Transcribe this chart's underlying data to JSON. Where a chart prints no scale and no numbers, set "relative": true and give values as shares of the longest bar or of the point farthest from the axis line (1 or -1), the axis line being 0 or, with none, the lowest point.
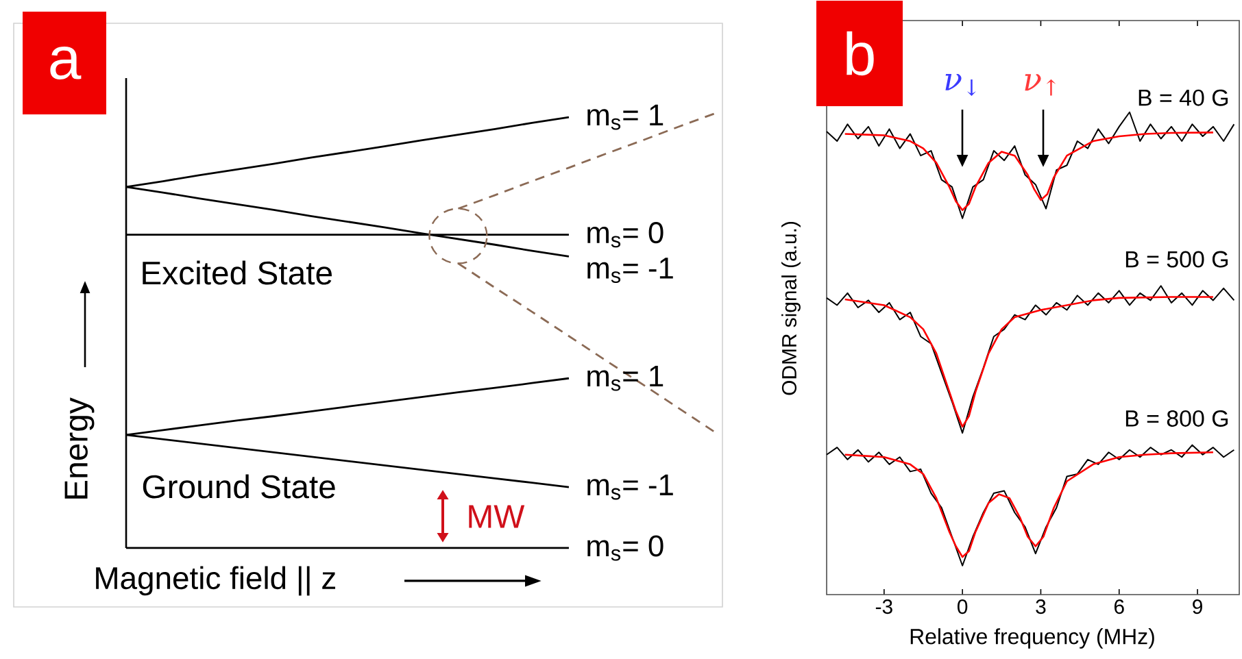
{
  "chart_data": [
    {
      "type": "line",
      "title": "a",
      "xlabel": "Magnetic field || z",
      "ylabel": "Energy",
      "relative": true,
      "categories": [
        null,
        null,
        null,
        null,
        null,
        null,
        null,
        null,
        null,
        null,
        null,
        null,
        null,
        null,
        null,
        null,
        null
      ],
      "line_style": "solid",
      "annotations": [
        "Excited State",
        "Ground State",
        "MW"
      ],
      "series": [
        {
          "name": "m$_{s}$= 1",
          "color": "#000000",
          "values": [
            0.83,
            0.843,
            0.857,
            0.87,
            0.883,
            0.897,
            0.91,
            0.923,
            0.937,
            0.95,
            0.963,
            0.977,
            0.99,
            null,
            null,
            null,
            null
          ]
        },
        {
          "name": "m$_{s}$= 0",
          "color": "#000000",
          "values": [
            0.72,
            0.72,
            0.72,
            0.72,
            0.72,
            0.72,
            0.72,
            0.72,
            0.72,
            0.72,
            0.72,
            0.72,
            0.72,
            null,
            null,
            null,
            null
          ]
        },
        {
          "name": "m$_{s}$= -1",
          "color": "#000000",
          "values": [
            0.83,
            0.817,
            0.803,
            0.79,
            0.777,
            0.763,
            0.75,
            0.737,
            0.723,
            0.71,
            0.697,
            0.683,
            0.67,
            null,
            null,
            null,
            null
          ]
        },
        {
          "color": "#8b6a55",
          "line_style": "dashed",
          "values": [
            null,
            null,
            null,
            null,
            null,
            null,
            null,
            null,
            null,
            0.78,
            0.811,
            0.843,
            0.874,
            0.906,
            0.937,
            0.969,
            1.0
          ]
        },
        {
          "color": "#8b6a55",
          "line_style": "dashed",
          "values": [
            null,
            null,
            null,
            null,
            null,
            null,
            null,
            null,
            null,
            0.654,
            0.598,
            0.543,
            0.487,
            0.431,
            0.376,
            0.32,
            0.264
          ]
        },
        {
          "name": "m$_{s}$= 1",
          "color": "#000000",
          "values": [
            0.26,
            0.271,
            0.282,
            0.293,
            0.303,
            0.314,
            0.325,
            0.336,
            0.347,
            0.358,
            0.368,
            0.379,
            0.39,
            null,
            null,
            null,
            null
          ]
        },
        {
          "name": "m$_{s}$= -1",
          "color": "#000000",
          "values": [
            0.26,
            0.25,
            0.24,
            0.23,
            0.22,
            0.21,
            0.2,
            0.19,
            0.18,
            0.17,
            0.16,
            0.15,
            0.14,
            null,
            null,
            null,
            null
          ]
        },
        {
          "name": "m$_{s}$= 0",
          "color": "#000000",
          "values": [
            0,
            0,
            0,
            0,
            0,
            0,
            0,
            0,
            0,
            0,
            0,
            0,
            0,
            null,
            null,
            null,
            null
          ]
        }
      ]
    },
    {
      "type": "line",
      "title": "b",
      "xlabel": "Relative frequency (MHz)",
      "ylabel": "ODMR signal (a.u.)",
      "relative": true,
      "xlim": [
        -5.2,
        10.6
      ],
      "xticks": [
        -3,
        0,
        3,
        6,
        9
      ],
      "line_style": "solid",
      "annotations": [
        "ν$_{↓}$",
        "ν$_{↑}$"
      ],
      "series": [
        {
          "name": "B = 40 G",
          "color": "#000000",
          "x": [
            -5.2,
            -4.8,
            -4.4,
            -4.0,
            -3.6,
            -3.2,
            -2.8,
            -2.4,
            -2.0,
            -1.6,
            -1.2,
            -0.8,
            -0.4,
            0.0,
            0.4,
            0.8,
            1.2,
            1.6,
            2.0,
            2.4,
            2.8,
            3.2,
            3.6,
            4.0,
            4.4,
            4.8,
            5.2,
            5.6,
            6.0,
            6.4,
            6.8,
            7.2,
            7.6,
            8.0,
            8.4,
            8.8,
            9.2,
            9.6,
            10.0,
            10.4
          ],
          "values": [
            0.96,
            0.94,
            0.975,
            0.945,
            0.97,
            0.93,
            0.965,
            0.925,
            0.955,
            0.91,
            0.92,
            0.86,
            0.845,
            0.78,
            0.845,
            0.86,
            0.92,
            0.9,
            0.93,
            0.87,
            0.85,
            0.8,
            0.88,
            0.89,
            0.94,
            0.925,
            0.965,
            0.935,
            0.97,
            1.0,
            0.94,
            0.975,
            0.945,
            0.97,
            0.94,
            0.975,
            0.95,
            0.97,
            0.94,
            0.975
          ]
        },
        {
          "color": "#ff0000",
          "x": [
            -4.5,
            -3,
            -2,
            -1.5,
            -1,
            -0.5,
            -0.25,
            0,
            0.25,
            0.5,
            1,
            1.5,
            2,
            2.5,
            2.75,
            3,
            3.25,
            3.5,
            4,
            5,
            6,
            7,
            8,
            9.6
          ],
          "values": [
            0.955,
            0.952,
            0.94,
            0.925,
            0.895,
            0.845,
            0.815,
            0.797,
            0.81,
            0.845,
            0.895,
            0.918,
            0.91,
            0.87,
            0.84,
            0.818,
            0.83,
            0.865,
            0.91,
            0.94,
            0.95,
            0.955,
            0.957,
            0.958
          ]
        },
        {
          "name": "B = 500 G",
          "color": "#000000",
          "x": [
            -5.2,
            -4.8,
            -4.4,
            -4.0,
            -3.6,
            -3.2,
            -2.8,
            -2.4,
            -2.0,
            -1.6,
            -1.2,
            -0.8,
            -0.4,
            0.0,
            0.4,
            0.8,
            1.2,
            1.6,
            2.0,
            2.4,
            2.8,
            3.2,
            3.6,
            4.0,
            4.4,
            4.8,
            5.2,
            5.6,
            6.0,
            6.4,
            6.8,
            7.2,
            7.6,
            8.0,
            8.4,
            8.8,
            9.2,
            9.6,
            10.0,
            10.4
          ],
          "values": [
            0.615,
            0.6,
            0.625,
            0.595,
            0.61,
            0.585,
            0.605,
            0.57,
            0.585,
            0.535,
            0.52,
            0.46,
            0.4,
            0.335,
            0.41,
            0.47,
            0.535,
            0.55,
            0.58,
            0.57,
            0.6,
            0.58,
            0.605,
            0.59,
            0.62,
            0.6,
            0.625,
            0.605,
            0.63,
            0.6,
            0.625,
            0.61,
            0.64,
            0.605,
            0.625,
            0.6,
            0.63,
            0.61,
            0.635,
            0.61
          ]
        },
        {
          "color": "#ff0000",
          "x": [
            -4.5,
            -3,
            -2,
            -1.5,
            -1,
            -0.5,
            -0.25,
            0,
            0.25,
            0.5,
            1,
            1.5,
            2,
            3,
            4,
            5,
            6,
            8,
            9.6
          ],
          "values": [
            0.612,
            0.6,
            0.575,
            0.55,
            0.5,
            0.42,
            0.38,
            0.348,
            0.37,
            0.42,
            0.5,
            0.55,
            0.575,
            0.59,
            0.6,
            0.61,
            0.615,
            0.617,
            0.617
          ]
        },
        {
          "name": "B = 800 G",
          "color": "#000000",
          "x": [
            -5.2,
            -4.8,
            -4.4,
            -4.0,
            -3.6,
            -3.2,
            -2.8,
            -2.4,
            -2.0,
            -1.6,
            -1.2,
            -0.8,
            -0.4,
            0.0,
            0.4,
            0.8,
            1.2,
            1.6,
            2.0,
            2.4,
            2.8,
            3.2,
            3.6,
            4.0,
            4.4,
            4.8,
            5.2,
            5.6,
            6.0,
            6.4,
            6.8,
            7.2,
            7.6,
            8.0,
            8.4,
            8.8,
            9.2,
            9.6,
            10.0,
            10.4
          ],
          "values": [
            0.29,
            0.305,
            0.28,
            0.3,
            0.275,
            0.295,
            0.27,
            0.285,
            0.255,
            0.26,
            0.21,
            0.18,
            0.12,
            0.06,
            0.12,
            0.17,
            0.21,
            0.215,
            0.17,
            0.14,
            0.085,
            0.14,
            0.18,
            0.245,
            0.25,
            0.28,
            0.27,
            0.295,
            0.28,
            0.3,
            0.285,
            0.305,
            0.29,
            0.3,
            0.285,
            0.31,
            0.29,
            0.305,
            0.285,
            0.3
          ]
        },
        {
          "color": "#ff0000",
          "x": [
            -4.5,
            -3,
            -2,
            -1.5,
            -1,
            -0.5,
            -0.25,
            0,
            0.25,
            0.5,
            1,
            1.4,
            1.8,
            2.2,
            2.5,
            2.8,
            3.1,
            3.5,
            4,
            5,
            6,
            7,
            8,
            9.6
          ],
          "values": [
            0.29,
            0.285,
            0.27,
            0.25,
            0.2,
            0.13,
            0.1,
            0.078,
            0.09,
            0.13,
            0.19,
            0.208,
            0.2,
            0.16,
            0.12,
            0.1,
            0.12,
            0.18,
            0.235,
            0.27,
            0.285,
            0.29,
            0.293,
            0.295
          ]
        }
      ]
    }
  ]
}
